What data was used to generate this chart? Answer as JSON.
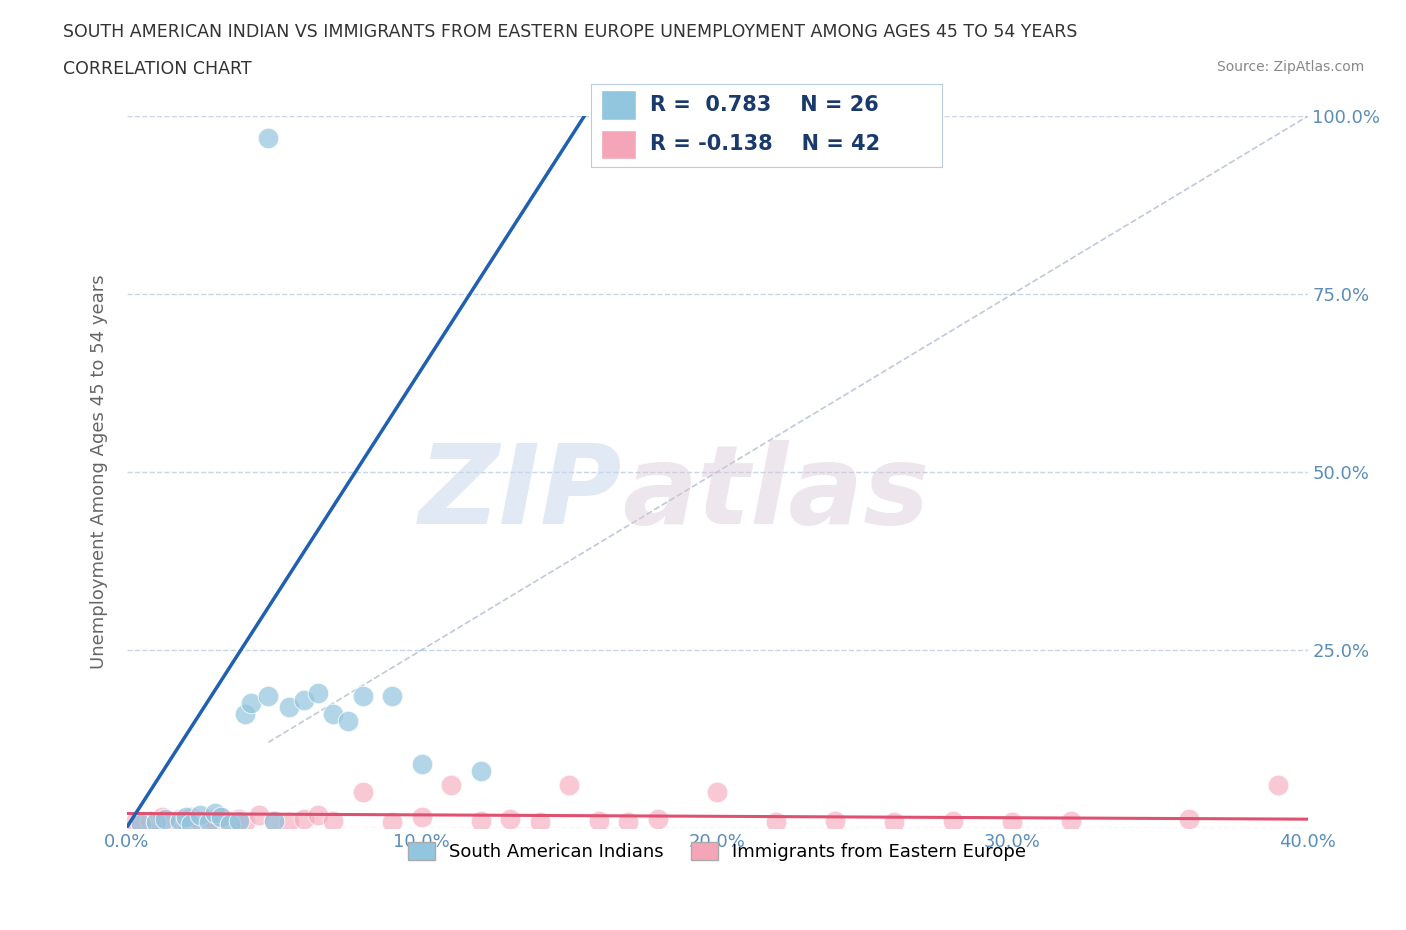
{
  "title_line1": "SOUTH AMERICAN INDIAN VS IMMIGRANTS FROM EASTERN EUROPE UNEMPLOYMENT AMONG AGES 45 TO 54 YEARS",
  "title_line2": "CORRELATION CHART",
  "source_text": "Source: ZipAtlas.com",
  "ylabel": "Unemployment Among Ages 45 to 54 years",
  "xlim": [
    0.0,
    0.4
  ],
  "ylim": [
    0.0,
    1.0
  ],
  "xticks": [
    0.0,
    0.1,
    0.2,
    0.3,
    0.4
  ],
  "yticks": [
    0.0,
    0.25,
    0.5,
    0.75,
    1.0
  ],
  "xticklabels": [
    "0.0%",
    "10.0%",
    "20.0%",
    "30.0%",
    "40.0%"
  ],
  "yticklabels_right": [
    "",
    "25.0%",
    "50.0%",
    "75.0%",
    "100.0%"
  ],
  "blue_r": 0.783,
  "blue_n": 26,
  "pink_r": -0.138,
  "pink_n": 42,
  "blue_color": "#92c5de",
  "pink_color": "#f4a6b8",
  "blue_scatter_x": [
    0.005,
    0.01,
    0.013,
    0.018,
    0.02,
    0.022,
    0.025,
    0.028,
    0.03,
    0.032,
    0.035,
    0.038,
    0.04,
    0.042,
    0.048,
    0.05,
    0.055,
    0.06,
    0.065,
    0.07,
    0.075,
    0.08,
    0.09,
    0.1,
    0.12,
    0.048
  ],
  "blue_scatter_y": [
    0.005,
    0.008,
    0.012,
    0.01,
    0.015,
    0.005,
    0.018,
    0.008,
    0.02,
    0.015,
    0.005,
    0.01,
    0.16,
    0.175,
    0.185,
    0.01,
    0.17,
    0.18,
    0.19,
    0.16,
    0.15,
    0.185,
    0.185,
    0.09,
    0.08,
    0.97
  ],
  "pink_scatter_x": [
    0.003,
    0.005,
    0.008,
    0.01,
    0.012,
    0.015,
    0.018,
    0.02,
    0.022,
    0.025,
    0.028,
    0.03,
    0.032,
    0.035,
    0.038,
    0.04,
    0.045,
    0.05,
    0.055,
    0.06,
    0.065,
    0.07,
    0.08,
    0.09,
    0.1,
    0.11,
    0.12,
    0.13,
    0.14,
    0.15,
    0.16,
    0.17,
    0.18,
    0.2,
    0.22,
    0.24,
    0.26,
    0.28,
    0.3,
    0.32,
    0.36,
    0.39
  ],
  "pink_scatter_y": [
    0.008,
    0.005,
    0.01,
    0.008,
    0.015,
    0.01,
    0.012,
    0.008,
    0.015,
    0.01,
    0.012,
    0.008,
    0.015,
    0.01,
    0.012,
    0.008,
    0.018,
    0.01,
    0.008,
    0.012,
    0.018,
    0.01,
    0.05,
    0.008,
    0.015,
    0.06,
    0.01,
    0.012,
    0.008,
    0.06,
    0.01,
    0.008,
    0.012,
    0.05,
    0.008,
    0.01,
    0.008,
    0.01,
    0.008,
    0.01,
    0.012,
    0.06
  ],
  "blue_trend_x": [
    0.0,
    0.155
  ],
  "blue_trend_y": [
    0.0,
    1.0
  ],
  "pink_trend_x": [
    0.0,
    0.4
  ],
  "pink_trend_y": [
    0.02,
    0.012
  ],
  "ref_line_x": [
    0.048,
    0.4
  ],
  "ref_line_y": [
    0.12,
    1.0
  ],
  "watermark_zip": "ZIP",
  "watermark_atlas": "atlas",
  "legend_blue_label": "South American Indians",
  "legend_pink_label": "Immigrants from Eastern Europe",
  "background_color": "#ffffff",
  "grid_color": "#c8d4e8",
  "tick_color": "#5b8db8",
  "title_color": "#333333",
  "axis_label_color": "#666666"
}
